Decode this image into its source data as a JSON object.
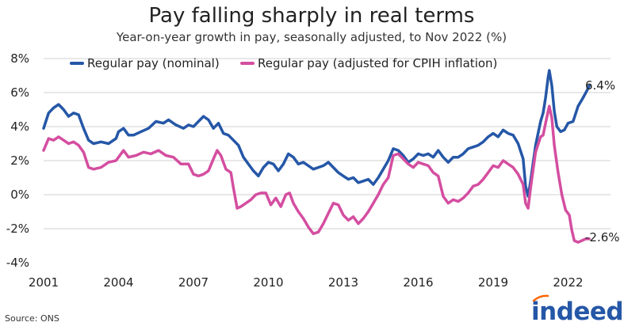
{
  "chart_data": {
    "type": "line",
    "title": "Pay falling sharply in real terms",
    "subtitle": "Year-on-year growth in pay, seasonally adjusted, to Nov 2022 (%)",
    "source": "Source: ONS",
    "brand": "indeed",
    "xlim": [
      2001.0,
      2023.7
    ],
    "ylim": [
      -4,
      8
    ],
    "xticks": [
      2001,
      2004,
      2007,
      2010,
      2013,
      2016,
      2019,
      2022
    ],
    "yticks": [
      -4,
      -2,
      0,
      2,
      4,
      6,
      8
    ],
    "ytick_labels": [
      "-4%",
      "-2%",
      "0%",
      "2%",
      "4%",
      "6%",
      "8%"
    ],
    "colors": {
      "nominal": "#2557a7",
      "real": "#d44ea0",
      "grid": "#d0d0d0"
    },
    "series": [
      {
        "name": "Regular pay (nominal)",
        "end_label": "6.4%",
        "points": [
          [
            2001.0,
            3.9
          ],
          [
            2001.2,
            4.8
          ],
          [
            2001.4,
            5.1
          ],
          [
            2001.6,
            5.3
          ],
          [
            2001.8,
            5.0
          ],
          [
            2002.0,
            4.6
          ],
          [
            2002.2,
            4.8
          ],
          [
            2002.4,
            4.7
          ],
          [
            2002.6,
            3.9
          ],
          [
            2002.8,
            3.2
          ],
          [
            2003.0,
            3.0
          ],
          [
            2003.3,
            3.1
          ],
          [
            2003.6,
            3.0
          ],
          [
            2003.9,
            3.3
          ],
          [
            2004.0,
            3.7
          ],
          [
            2004.2,
            3.9
          ],
          [
            2004.4,
            3.5
          ],
          [
            2004.6,
            3.5
          ],
          [
            2004.9,
            3.7
          ],
          [
            2005.2,
            3.9
          ],
          [
            2005.5,
            4.3
          ],
          [
            2005.8,
            4.2
          ],
          [
            2006.0,
            4.4
          ],
          [
            2006.3,
            4.1
          ],
          [
            2006.6,
            3.9
          ],
          [
            2006.8,
            4.1
          ],
          [
            2007.0,
            4.0
          ],
          [
            2007.2,
            4.3
          ],
          [
            2007.4,
            4.6
          ],
          [
            2007.6,
            4.4
          ],
          [
            2007.8,
            3.9
          ],
          [
            2008.0,
            4.2
          ],
          [
            2008.2,
            3.6
          ],
          [
            2008.4,
            3.5
          ],
          [
            2008.6,
            3.2
          ],
          [
            2008.8,
            2.9
          ],
          [
            2009.0,
            2.2
          ],
          [
            2009.2,
            1.8
          ],
          [
            2009.4,
            1.4
          ],
          [
            2009.6,
            1.1
          ],
          [
            2009.8,
            1.6
          ],
          [
            2010.0,
            1.9
          ],
          [
            2010.2,
            1.8
          ],
          [
            2010.4,
            1.4
          ],
          [
            2010.6,
            1.8
          ],
          [
            2010.8,
            2.4
          ],
          [
            2011.0,
            2.2
          ],
          [
            2011.2,
            1.8
          ],
          [
            2011.4,
            1.9
          ],
          [
            2011.6,
            1.7
          ],
          [
            2011.8,
            1.5
          ],
          [
            2012.0,
            1.6
          ],
          [
            2012.2,
            1.7
          ],
          [
            2012.4,
            1.9
          ],
          [
            2012.6,
            1.6
          ],
          [
            2012.8,
            1.3
          ],
          [
            2013.0,
            1.1
          ],
          [
            2013.2,
            0.9
          ],
          [
            2013.4,
            1.0
          ],
          [
            2013.6,
            0.7
          ],
          [
            2013.8,
            0.8
          ],
          [
            2014.0,
            0.9
          ],
          [
            2014.2,
            0.6
          ],
          [
            2014.4,
            1.0
          ],
          [
            2014.6,
            1.5
          ],
          [
            2014.8,
            2.0
          ],
          [
            2015.0,
            2.7
          ],
          [
            2015.2,
            2.6
          ],
          [
            2015.4,
            2.3
          ],
          [
            2015.6,
            1.9
          ],
          [
            2015.8,
            2.1
          ],
          [
            2016.0,
            2.4
          ],
          [
            2016.2,
            2.3
          ],
          [
            2016.4,
            2.4
          ],
          [
            2016.6,
            2.2
          ],
          [
            2016.8,
            2.6
          ],
          [
            2017.0,
            2.2
          ],
          [
            2017.2,
            1.9
          ],
          [
            2017.4,
            2.2
          ],
          [
            2017.6,
            2.2
          ],
          [
            2017.8,
            2.4
          ],
          [
            2018.0,
            2.7
          ],
          [
            2018.2,
            2.8
          ],
          [
            2018.4,
            2.9
          ],
          [
            2018.6,
            3.1
          ],
          [
            2018.8,
            3.4
          ],
          [
            2019.0,
            3.6
          ],
          [
            2019.2,
            3.4
          ],
          [
            2019.4,
            3.8
          ],
          [
            2019.6,
            3.6
          ],
          [
            2019.8,
            3.5
          ],
          [
            2020.0,
            3.0
          ],
          [
            2020.2,
            2.1
          ],
          [
            2020.3,
            0.5
          ],
          [
            2020.4,
            -0.1
          ],
          [
            2020.5,
            0.8
          ],
          [
            2020.7,
            2.9
          ],
          [
            2020.9,
            4.3
          ],
          [
            2021.0,
            4.8
          ],
          [
            2021.1,
            5.7
          ],
          [
            2021.2,
            6.9
          ],
          [
            2021.25,
            7.3
          ],
          [
            2021.35,
            6.4
          ],
          [
            2021.45,
            4.9
          ],
          [
            2021.55,
            4.0
          ],
          [
            2021.7,
            3.7
          ],
          [
            2021.85,
            3.8
          ],
          [
            2022.0,
            4.2
          ],
          [
            2022.2,
            4.3
          ],
          [
            2022.4,
            5.2
          ],
          [
            2022.6,
            5.7
          ],
          [
            2022.75,
            6.1
          ],
          [
            2022.85,
            6.4
          ]
        ]
      },
      {
        "name": "Regular pay (adjusted for CPIH inflation)",
        "end_label": "-2.6%",
        "points": [
          [
            2001.0,
            2.6
          ],
          [
            2001.2,
            3.3
          ],
          [
            2001.4,
            3.2
          ],
          [
            2001.6,
            3.4
          ],
          [
            2001.8,
            3.2
          ],
          [
            2002.0,
            3.0
          ],
          [
            2002.2,
            3.1
          ],
          [
            2002.4,
            2.9
          ],
          [
            2002.6,
            2.5
          ],
          [
            2002.8,
            1.6
          ],
          [
            2003.0,
            1.5
          ],
          [
            2003.3,
            1.6
          ],
          [
            2003.6,
            1.9
          ],
          [
            2003.9,
            2.0
          ],
          [
            2004.2,
            2.6
          ],
          [
            2004.4,
            2.2
          ],
          [
            2004.7,
            2.3
          ],
          [
            2005.0,
            2.5
          ],
          [
            2005.3,
            2.4
          ],
          [
            2005.6,
            2.6
          ],
          [
            2005.9,
            2.3
          ],
          [
            2006.2,
            2.2
          ],
          [
            2006.5,
            1.8
          ],
          [
            2006.8,
            1.8
          ],
          [
            2007.0,
            1.2
          ],
          [
            2007.2,
            1.1
          ],
          [
            2007.4,
            1.2
          ],
          [
            2007.6,
            1.4
          ],
          [
            2007.8,
            2.1
          ],
          [
            2007.95,
            2.6
          ],
          [
            2008.1,
            2.3
          ],
          [
            2008.3,
            1.5
          ],
          [
            2008.5,
            1.3
          ],
          [
            2008.6,
            0.4
          ],
          [
            2008.75,
            -0.8
          ],
          [
            2008.9,
            -0.7
          ],
          [
            2009.1,
            -0.5
          ],
          [
            2009.3,
            -0.3
          ],
          [
            2009.5,
            0.0
          ],
          [
            2009.7,
            0.1
          ],
          [
            2009.9,
            0.1
          ],
          [
            2010.1,
            -0.6
          ],
          [
            2010.3,
            -0.2
          ],
          [
            2010.5,
            -0.7
          ],
          [
            2010.7,
            0.0
          ],
          [
            2010.85,
            0.1
          ],
          [
            2011.0,
            -0.5
          ],
          [
            2011.2,
            -1.0
          ],
          [
            2011.4,
            -1.4
          ],
          [
            2011.6,
            -1.9
          ],
          [
            2011.8,
            -2.3
          ],
          [
            2012.0,
            -2.2
          ],
          [
            2012.2,
            -1.7
          ],
          [
            2012.4,
            -1.1
          ],
          [
            2012.6,
            -0.5
          ],
          [
            2012.8,
            -0.6
          ],
          [
            2013.0,
            -1.2
          ],
          [
            2013.2,
            -1.5
          ],
          [
            2013.4,
            -1.3
          ],
          [
            2013.6,
            -1.7
          ],
          [
            2013.8,
            -1.4
          ],
          [
            2014.0,
            -1.0
          ],
          [
            2014.2,
            -0.5
          ],
          [
            2014.4,
            0.0
          ],
          [
            2014.6,
            0.6
          ],
          [
            2014.8,
            1.0
          ],
          [
            2015.0,
            2.3
          ],
          [
            2015.2,
            2.4
          ],
          [
            2015.4,
            2.1
          ],
          [
            2015.6,
            1.8
          ],
          [
            2015.8,
            1.6
          ],
          [
            2016.0,
            1.9
          ],
          [
            2016.2,
            1.8
          ],
          [
            2016.4,
            1.7
          ],
          [
            2016.6,
            1.3
          ],
          [
            2016.8,
            1.1
          ],
          [
            2017.0,
            -0.1
          ],
          [
            2017.2,
            -0.5
          ],
          [
            2017.4,
            -0.3
          ],
          [
            2017.6,
            -0.4
          ],
          [
            2017.8,
            -0.2
          ],
          [
            2018.0,
            0.1
          ],
          [
            2018.2,
            0.5
          ],
          [
            2018.4,
            0.6
          ],
          [
            2018.6,
            0.9
          ],
          [
            2018.8,
            1.3
          ],
          [
            2019.0,
            1.7
          ],
          [
            2019.2,
            1.6
          ],
          [
            2019.4,
            2.0
          ],
          [
            2019.6,
            1.8
          ],
          [
            2019.8,
            1.6
          ],
          [
            2020.0,
            1.2
          ],
          [
            2020.2,
            0.6
          ],
          [
            2020.3,
            -0.5
          ],
          [
            2020.4,
            -0.8
          ],
          [
            2020.5,
            0.4
          ],
          [
            2020.7,
            2.5
          ],
          [
            2020.9,
            3.4
          ],
          [
            2021.0,
            3.5
          ],
          [
            2021.1,
            4.2
          ],
          [
            2021.2,
            4.9
          ],
          [
            2021.25,
            5.2
          ],
          [
            2021.35,
            4.5
          ],
          [
            2021.45,
            2.9
          ],
          [
            2021.6,
            1.3
          ],
          [
            2021.75,
            0.0
          ],
          [
            2021.9,
            -0.9
          ],
          [
            2022.05,
            -1.2
          ],
          [
            2022.15,
            -2.1
          ],
          [
            2022.25,
            -2.7
          ],
          [
            2022.4,
            -2.8
          ],
          [
            2022.55,
            -2.7
          ],
          [
            2022.7,
            -2.6
          ],
          [
            2022.85,
            -2.6
          ]
        ]
      }
    ]
  }
}
